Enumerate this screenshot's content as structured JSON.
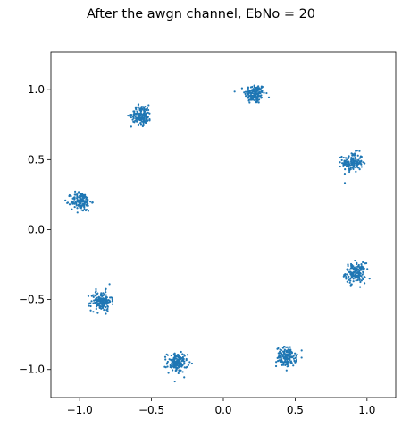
{
  "chart_data": {
    "type": "scatter",
    "title": "After the awgn channel, EbNo = 20",
    "xlabel": "",
    "ylabel": "",
    "xlim": [
      -1.2,
      1.2
    ],
    "ylim": [
      -1.2,
      1.27
    ],
    "xticks": [
      -1.0,
      -0.5,
      0.0,
      0.5,
      1.0
    ],
    "yticks": [
      -1.0,
      -0.5,
      0.0,
      0.5,
      1.0
    ],
    "xtick_labels": [
      "−1.0",
      "−0.5",
      "0.0",
      "0.5",
      "1.0"
    ],
    "ytick_labels": [
      "−1.0",
      "−0.5",
      "0.0",
      "0.5",
      "1.0"
    ],
    "grid": false,
    "marker_color": "#1f77b4",
    "clusters": [
      {
        "x": 0.22,
        "y": 0.97
      },
      {
        "x": 0.9,
        "y": 0.48
      },
      {
        "x": 0.92,
        "y": -0.31
      },
      {
        "x": 0.44,
        "y": -0.91
      },
      {
        "x": -0.32,
        "y": -0.95
      },
      {
        "x": -0.85,
        "y": -0.51
      },
      {
        "x": -0.99,
        "y": 0.2
      },
      {
        "x": -0.57,
        "y": 0.82
      }
    ],
    "points_per_cluster": 150,
    "cluster_spread": 0.035
  }
}
